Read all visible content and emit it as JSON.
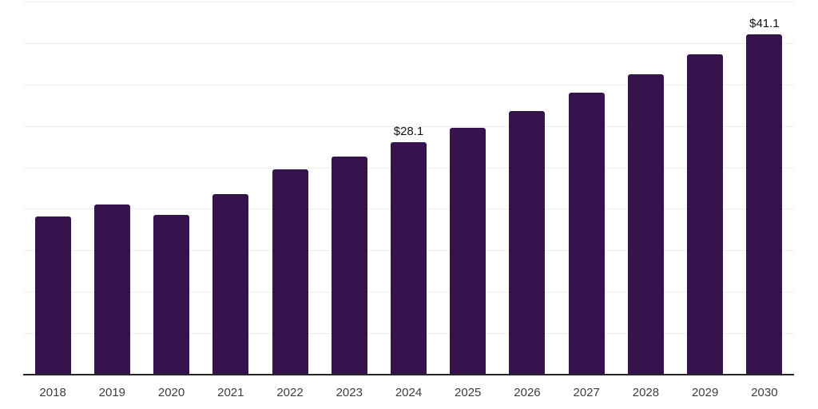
{
  "chart_data": {
    "type": "bar",
    "categories": [
      "2018",
      "2019",
      "2020",
      "2021",
      "2022",
      "2023",
      "2024",
      "2025",
      "2026",
      "2027",
      "2028",
      "2029",
      "2030"
    ],
    "values": [
      19.2,
      20.6,
      19.4,
      21.9,
      24.9,
      26.4,
      28.1,
      29.9,
      31.9,
      34.1,
      36.3,
      38.7,
      41.1
    ],
    "annotations": [
      {
        "category": "2024",
        "text": "$28.1"
      },
      {
        "category": "2030",
        "text": "$41.1"
      }
    ],
    "title": "",
    "xlabel": "",
    "ylabel": "",
    "ylim": [
      0,
      45
    ],
    "grid_step": 5,
    "grid": true,
    "legend": false,
    "colors": {
      "bar": "#36134D",
      "gridline": "#EDEDED",
      "axis": "#262626",
      "tick_label": "#3D3D3D",
      "value_label": "#111111",
      "background": "#FFFFFF"
    }
  }
}
